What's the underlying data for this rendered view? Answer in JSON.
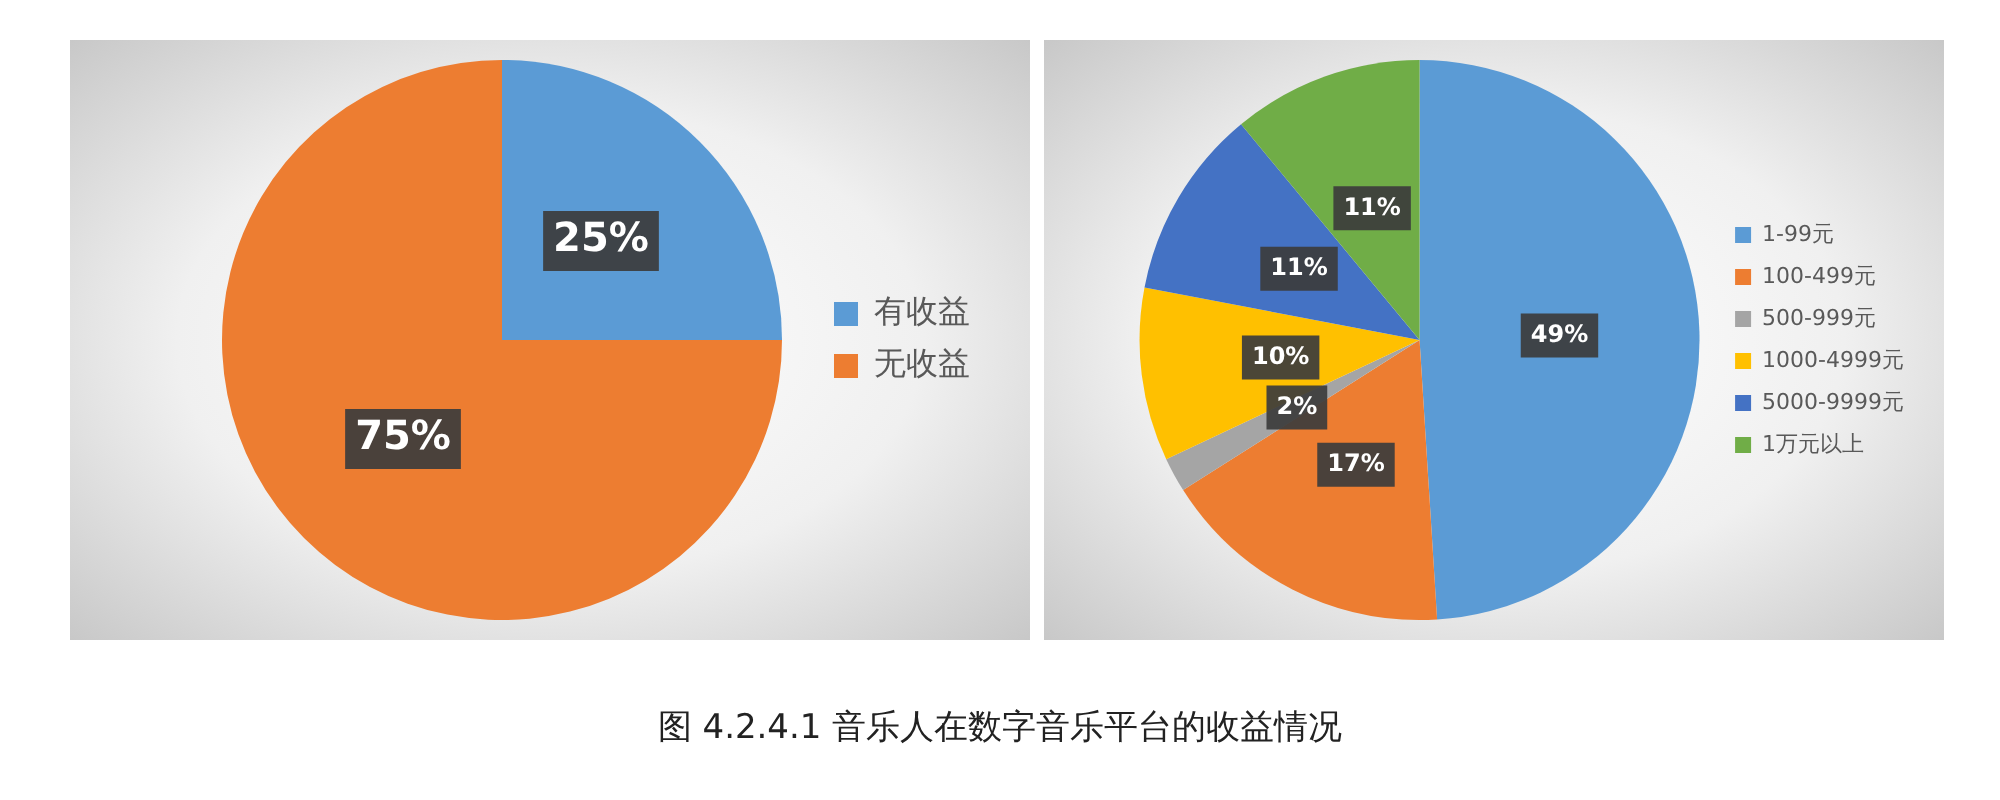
{
  "chart_data": [
    {
      "type": "pie",
      "categories": [
        "有收益",
        "无收益"
      ],
      "values": [
        25,
        75
      ],
      "colors": [
        "#5b9bd5",
        "#ed7d31"
      ],
      "value_labels": [
        "25%",
        "75%"
      ],
      "legend": "right"
    },
    {
      "type": "pie",
      "categories": [
        "1-99元",
        "100-499元",
        "500-999元",
        "1000-4999元",
        "5000-9999元",
        "1万元以上"
      ],
      "values": [
        49,
        17,
        2,
        10,
        11,
        11
      ],
      "colors": [
        "#5b9bd5",
        "#ed7d31",
        "#a5a5a5",
        "#ffc000",
        "#4472c4",
        "#70ad47"
      ],
      "value_labels": [
        "49%",
        "17%",
        "2%",
        "10%",
        "11%",
        "11%"
      ],
      "legend": "right",
      "annotations": [
        "图 4.2.4.1  音乐人在数字音乐平台的收益情况"
      ]
    }
  ]
}
